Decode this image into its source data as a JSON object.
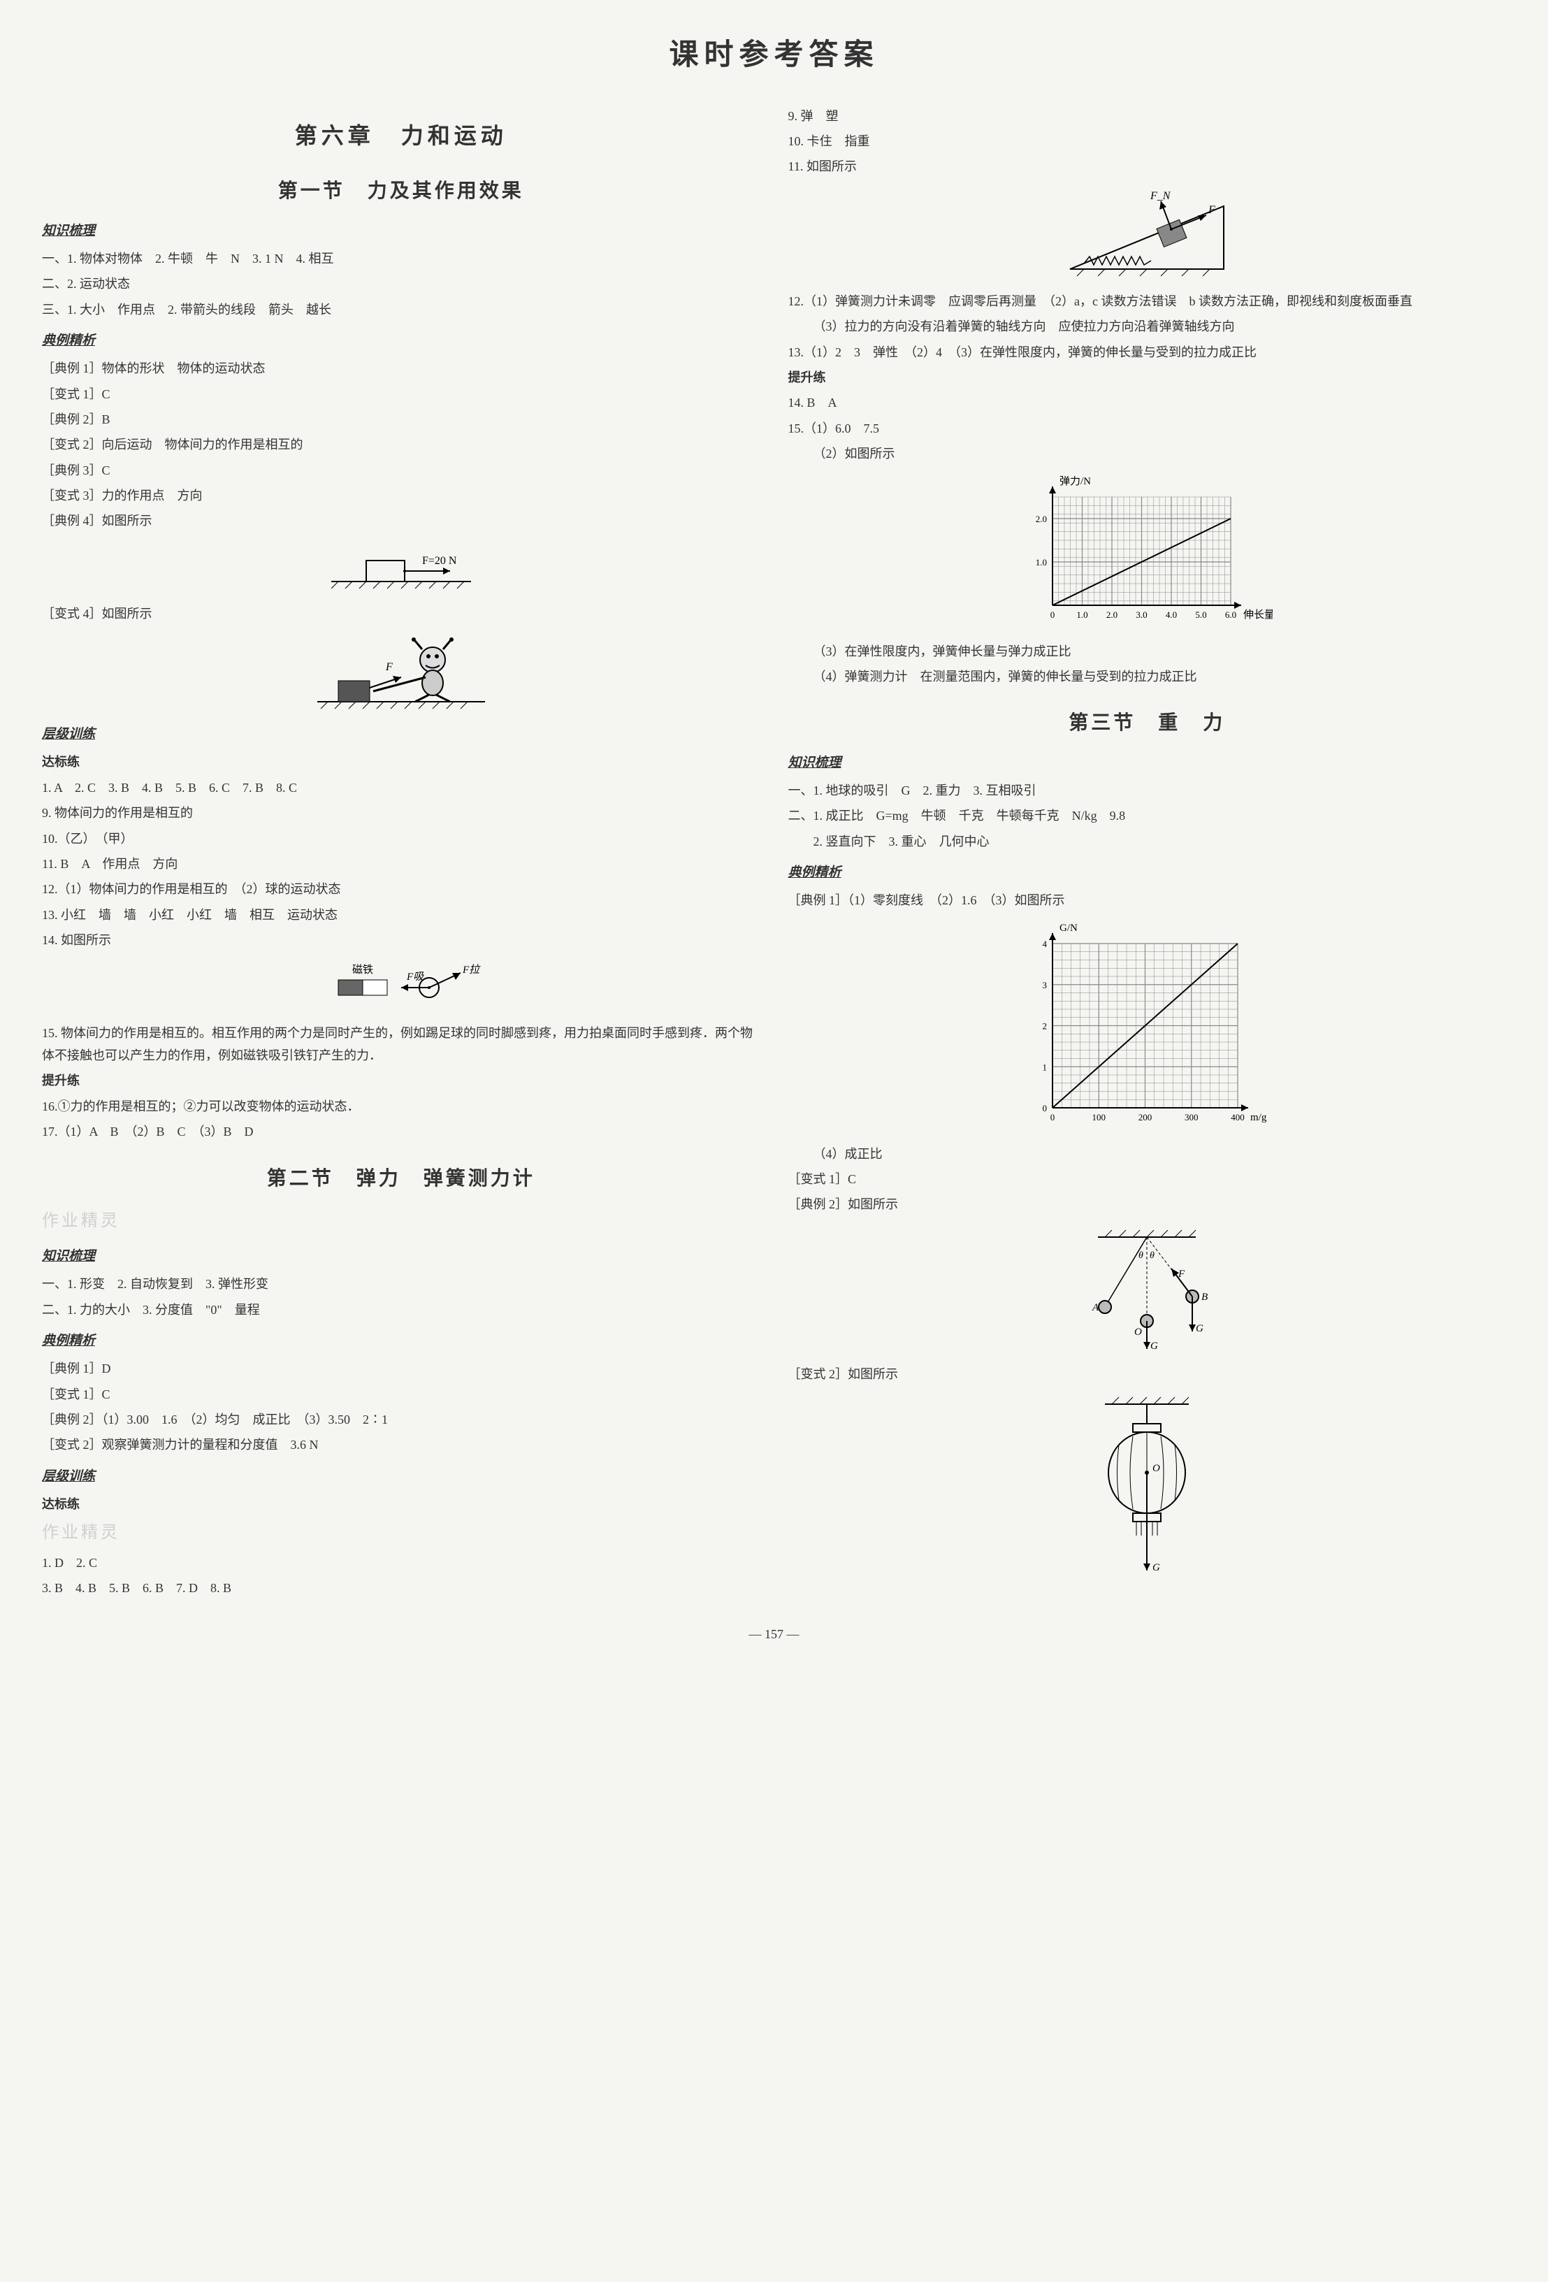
{
  "page": {
    "title": "课时参考答案",
    "pageNumber": "— 157 —"
  },
  "left": {
    "chapterTitle": "第六章　力和运动",
    "section1": {
      "title": "第一节　力及其作用效果",
      "zhishi": {
        "head": "知识梳理",
        "l1": "一、1. 物体对物体　2. 牛顿　牛　N　3. 1 N　4. 相互",
        "l2": "二、2. 运动状态",
        "l3": "三、1. 大小　作用点　2. 带箭头的线段　箭头　越长"
      },
      "dianli": {
        "head": "典例精析",
        "l1": "［典例 1］物体的形状　物体的运动状态",
        "l2": "［变式 1］C",
        "l3": "［典例 2］B",
        "l4": "［变式 2］向后运动　物体间力的作用是相互的",
        "l5": "［典例 3］C",
        "l6": "［变式 3］力的作用点　方向",
        "l7": "［典例 4］如图所示",
        "l8": "［变式 4］如图所示"
      },
      "fig1": {
        "forceLabel": "F=20 N"
      },
      "fig2": {
        "forceLabel": "F"
      },
      "cengji": {
        "head": "层级训练",
        "dbHead": "达标练",
        "l1": "1. A　2. C　3. B　4. B　5. B　6. C　7. B　8. C",
        "l2": "9. 物体间力的作用是相互的",
        "l3": "10.（乙）　（甲）",
        "l4": "11. B　A　作用点　方向",
        "l5": "12.（1）物体间力的作用是相互的　（2）球的运动状态",
        "l6": "13. 小红　墙　墙　小红　小红　墙　相互　运动状态",
        "l7": "14. 如图所示",
        "fig3": {
          "magnetLabel": "磁铁",
          "f1": "F吸",
          "f2": "F拉"
        },
        "l8": "15. 物体间力的作用是相互的。相互作用的两个力是同时产生的，例如踢足球的同时脚感到疼，用力拍桌面同时手感到疼．两个物体不接触也可以产生力的作用，例如磁铁吸引铁钉产生的力．",
        "tsHead": "提升练",
        "l9": "16.①力的作用是相互的；②力可以改变物体的运动状态．",
        "l10": "17.（1）A　B　（2）B　C　（3）B　D"
      }
    },
    "section2": {
      "title": "第二节　弹力　弹簧测力计",
      "watermark1": "作业精灵",
      "zhishi": {
        "head": "知识梳理",
        "l1": "一、1. 形变　2. 自动恢复到　3. 弹性形变",
        "l2": "二、1. 力的大小　3. 分度值　\"0\"　量程"
      },
      "dianli": {
        "head": "典例精析",
        "l1": "［典例 1］D",
        "l2": "［变式 1］C",
        "l3": "［典例 2］（1）3.00　1.6　（2）均匀　成正比　（3）3.50　2∶1",
        "l4": "［变式 2］观察弹簧测力计的量程和分度值　3.6 N"
      },
      "cengji": {
        "head": "层级训练",
        "watermark2": "作业精灵",
        "dbHead": "达标练",
        "l1": "1. D　2. C",
        "l2": "3. B　4. B　5. B　6. B　7. D　8. B"
      }
    }
  },
  "right": {
    "top": {
      "l1": "9. 弹　塑",
      "l2": "10. 卡住　指重",
      "l3": "11. 如图所示"
    },
    "fig4": {
      "fn": "F_N",
      "f": "F"
    },
    "l4": "12.（1）弹簧测力计未调零　应调零后再测量　（2）a，c 读数方法错误　b 读数方法正确，即视线和刻度板面垂直",
    "l4b": "（3）拉力的方向没有沿着弹簧的轴线方向　应使拉力方向沿着弹簧轴线方向",
    "l5": "13.（1）2　3　弹性　（2）4　（3）在弹性限度内，弹簧的伸长量与受到的拉力成正比",
    "tsHead": "提升练",
    "l6": "14. B　A",
    "l7": "15.（1）6.0　7.5",
    "l7b": "（2）如图所示",
    "chart1": {
      "ylabel": "弹力/N",
      "xlabel": "伸长量/cm",
      "xticks": [
        "0",
        "1.0",
        "2.0",
        "3.0",
        "4.0",
        "5.0",
        "6.0"
      ],
      "yticks": [
        "1.0",
        "2.0"
      ],
      "xmax": 6.0,
      "ymax": 2.5,
      "line": [
        [
          0,
          0
        ],
        [
          6,
          2
        ]
      ],
      "gridColor": "#888",
      "lineColor": "#000",
      "bg": "#f5f5f2"
    },
    "l8": "（3）在弹性限度内，弹簧伸长量与弹力成正比",
    "l9": "（4）弹簧测力计　在测量范围内，弹簧的伸长量与受到的拉力成正比",
    "section3": {
      "title": "第三节　重　力",
      "zhishi": {
        "head": "知识梳理",
        "l1": "一、1. 地球的吸引　G　2. 重力　3. 互相吸引",
        "l2": "二、1. 成正比　G=mg　牛顿　千克　牛顿每千克　N/kg　9.8",
        "l3": "2. 竖直向下　3. 重心　几何中心"
      },
      "dianli": {
        "head": "典例精析",
        "l1": "［典例 1］（1）零刻度线　（2）1.6　（3）如图所示"
      },
      "chart2": {
        "ylabel": "G/N",
        "xlabel": "m/g",
        "xticks": [
          "0",
          "100",
          "200",
          "300",
          "400"
        ],
        "yticks": [
          "0",
          "1",
          "2",
          "3",
          "4"
        ],
        "xmax": 400,
        "ymax": 4,
        "line": [
          [
            0,
            0
          ],
          [
            400,
            4
          ]
        ],
        "gridColor": "#888",
        "lineColor": "#000"
      },
      "l2": "（4）成正比",
      "l3": "［变式 1］C",
      "l4": "［典例 2］如图所示",
      "fig5": {
        "a": "A",
        "b": "B",
        "o": "O",
        "f": "F",
        "g": "G",
        "theta": "θ"
      },
      "l5": "［变式 2］如图所示",
      "fig6": {
        "o": "O",
        "g": "G"
      }
    }
  }
}
